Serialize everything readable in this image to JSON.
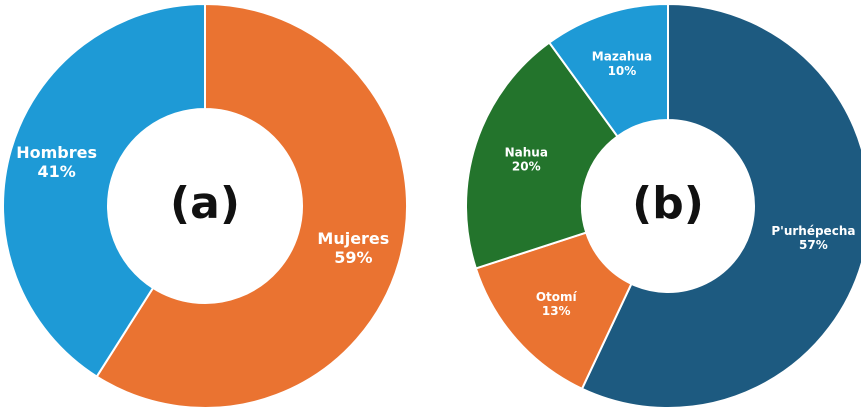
{
  "chart_data": [
    {
      "type": "pie",
      "title": "(a)",
      "categories": [
        "Mujeres",
        "Hombres"
      ],
      "values": [
        59,
        41
      ],
      "value_labels": [
        "59%",
        "41%"
      ],
      "colors": [
        "#ea7331",
        "#1e9ad6"
      ]
    },
    {
      "type": "pie",
      "title": "(b)",
      "categories": [
        "P'urhépecha",
        "Otomí",
        "Nahua",
        "Mazahua"
      ],
      "values": [
        57,
        13,
        20,
        10
      ],
      "value_labels": [
        "57%",
        "13%",
        "20%",
        "10%"
      ],
      "colors": [
        "#1d5a80",
        "#ea7331",
        "#23742c",
        "#1e9ad6"
      ]
    }
  ]
}
